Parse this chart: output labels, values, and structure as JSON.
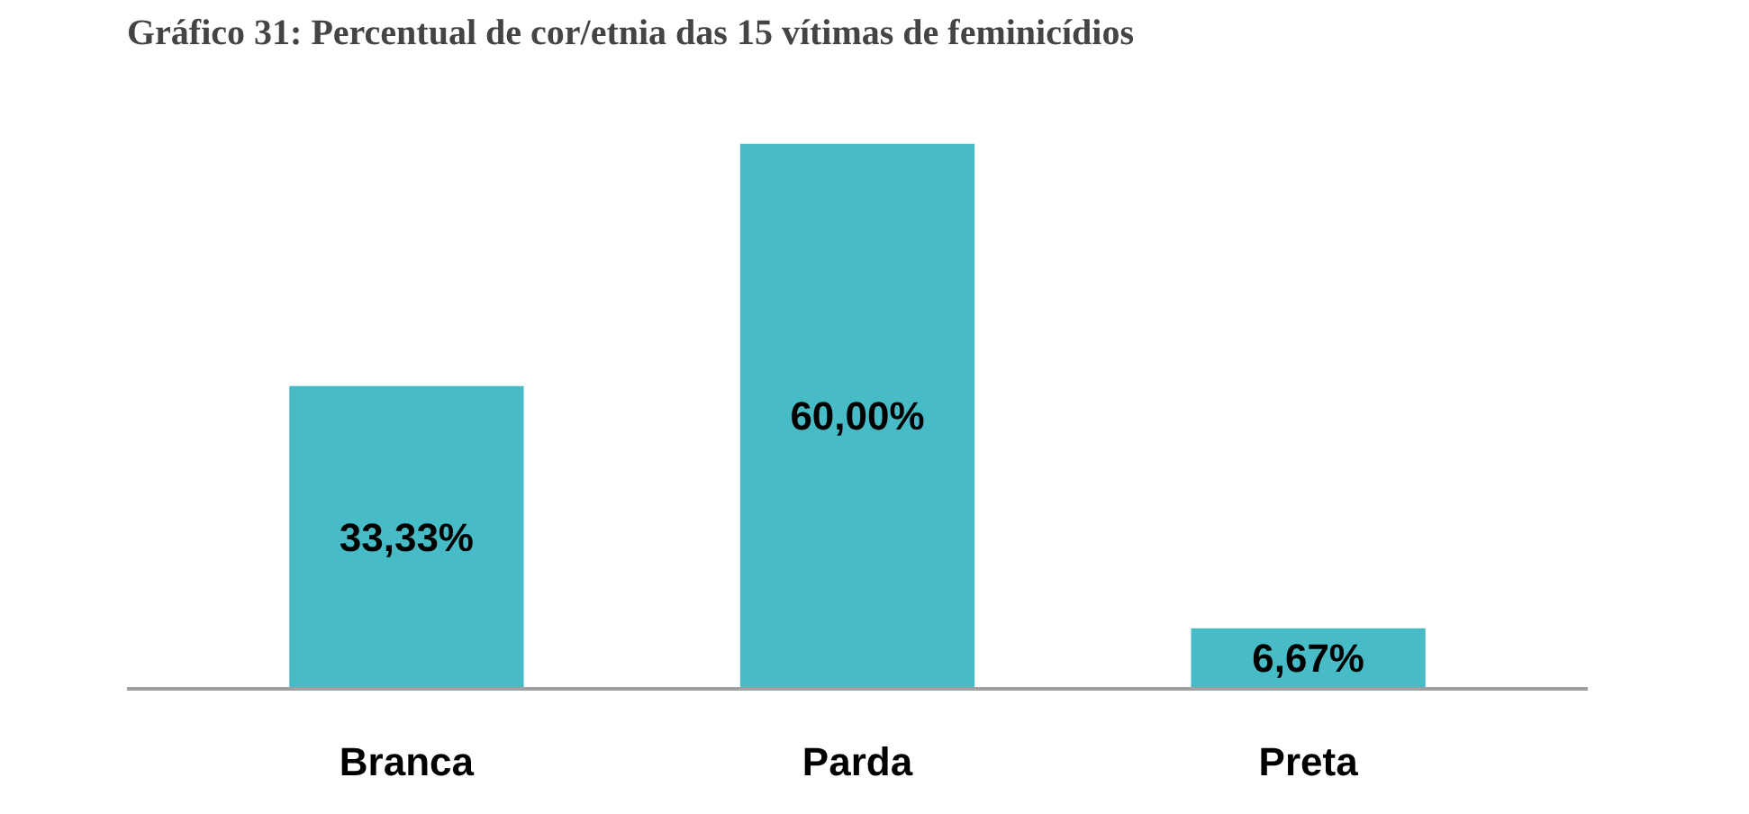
{
  "chart_data": {
    "type": "bar",
    "title": "Gráfico 31: Percentual de cor/etnia das 15 vítimas de feminicídios",
    "categories": [
      "Branca",
      "Parda",
      "Preta"
    ],
    "values": [
      33.33,
      60.0,
      6.67
    ],
    "value_labels": [
      "33,33%",
      "60,00%",
      "6,67%"
    ],
    "color": "#48bcc6",
    "grid": false
  }
}
